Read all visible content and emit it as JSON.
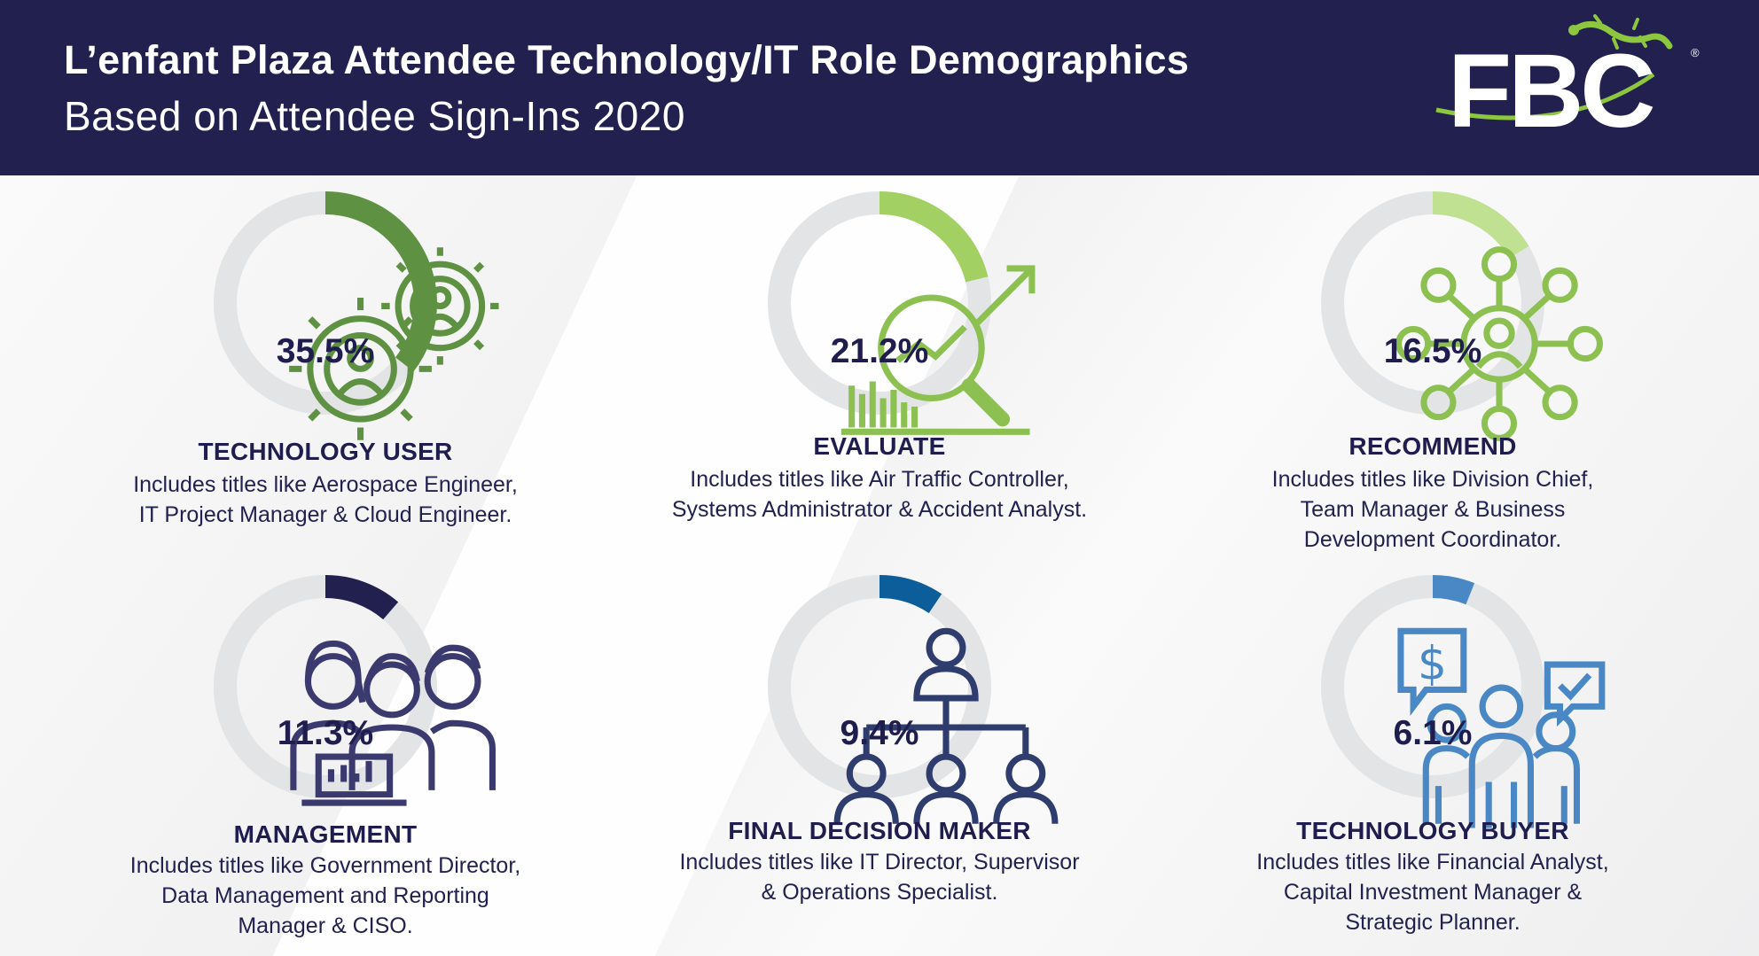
{
  "header": {
    "title": "L’enfant Plaza Attendee Technology/IT Role Demographics",
    "subtitle": "Based on Attendee Sign-Ins 2020",
    "logo_text": "FBC",
    "logo_mark": "®"
  },
  "colors": {
    "header_bg": "#21204f",
    "ring_track": "#e3e4e6",
    "technology_user": "#5e9141",
    "evaluate": "#a3d063",
    "recommend": "#bfe191",
    "management": "#21204f",
    "final_decision_maker": "#0b5e9a",
    "technology_buyer": "#4a88c5"
  },
  "chart_data": {
    "type": "donut",
    "items": [
      {
        "pct_label": "35.5%",
        "value": 35.5,
        "role": "TECHNOLOGY USER",
        "desc_lines": [
          "Includes titles like Aerospace Engineer,",
          "IT Project Manager & Cloud Engineer."
        ],
        "icon": "gears-people-icon",
        "color": "#5e9141"
      },
      {
        "pct_label": "21.2%",
        "value": 21.2,
        "role": "EVALUATE",
        "desc_lines": [
          "Includes titles like Air Traffic Controller,",
          "Systems Administrator & Accident Analyst."
        ],
        "icon": "magnifier-chart-icon",
        "color": "#a3d063"
      },
      {
        "pct_label": "16.5%",
        "value": 16.5,
        "role": "RECOMMEND",
        "desc_lines": [
          "Includes titles like Division Chief,",
          "Team Manager & Business",
          "Development Coordinator."
        ],
        "icon": "network-person-icon",
        "color": "#bfe191"
      },
      {
        "pct_label": "11.3%",
        "value": 11.3,
        "role": "MANAGEMENT",
        "desc_lines": [
          "Includes titles like Government Director,",
          "Data Management and Reporting",
          "Manager & CISO."
        ],
        "icon": "team-laptop-icon",
        "color": "#21204f"
      },
      {
        "pct_label": "9.4%",
        "value": 9.4,
        "role": "FINAL DECISION MAKER",
        "desc_lines": [
          "Includes titles like IT Director, Supervisor",
          "& Operations Specialist."
        ],
        "icon": "org-chart-icon",
        "color": "#0b5e9a"
      },
      {
        "pct_label": "6.1%",
        "value": 6.1,
        "role": "TECHNOLOGY BUYER",
        "desc_lines": [
          "Includes titles like Financial Analyst,",
          "Capital Investment Manager &",
          "Strategic Planner."
        ],
        "icon": "buyers-chat-icon",
        "color": "#4a88c5"
      }
    ]
  }
}
